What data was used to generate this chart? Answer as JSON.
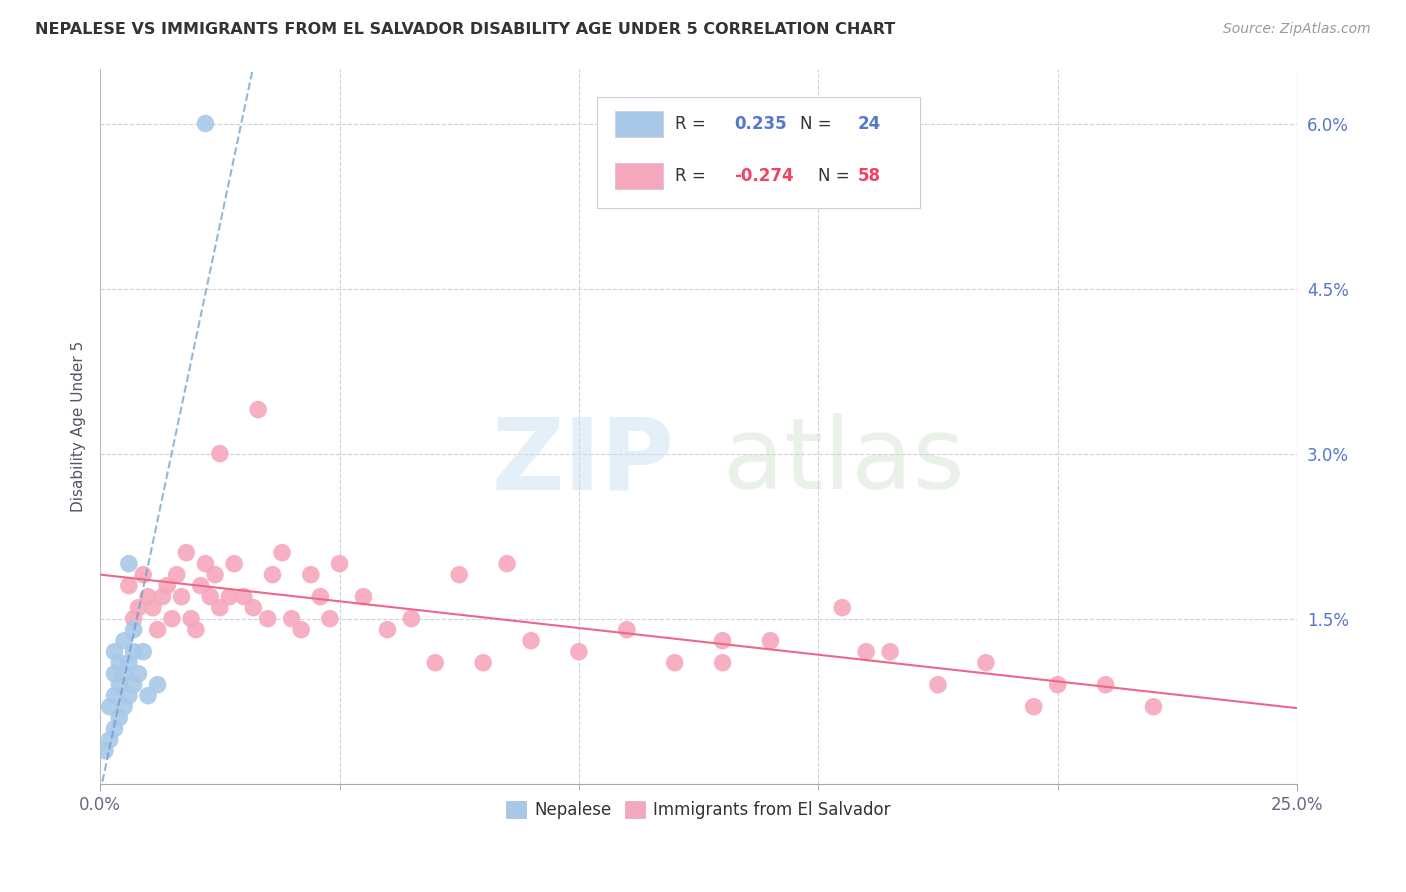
{
  "title": "NEPALESE VS IMMIGRANTS FROM EL SALVADOR DISABILITY AGE UNDER 5 CORRELATION CHART",
  "source": "Source: ZipAtlas.com",
  "ylabel": "Disability Age Under 5",
  "xlim": [
    0.0,
    0.25
  ],
  "ylim": [
    0.0,
    0.065
  ],
  "xticks": [
    0.0,
    0.25
  ],
  "xticklabels": [
    "0.0%",
    "25.0%"
  ],
  "xticks_minor": [
    0.05,
    0.1,
    0.15,
    0.2
  ],
  "yticks_right": [
    0.015,
    0.03,
    0.045,
    0.06
  ],
  "yticklabels_right": [
    "1.5%",
    "3.0%",
    "4.5%",
    "6.0%"
  ],
  "grid_color": "#d0d0e0",
  "background_color": "#ffffff",
  "nepalese_color": "#a8c8e8",
  "salvador_color": "#f5a8bc",
  "nepalese_trend_color": "#6699cc",
  "salvador_trend_color": "#ee6688",
  "legend_R1": "0.235",
  "legend_N1": "24",
  "legend_R2": "-0.274",
  "legend_N2": "58",
  "nepalese_x": [
    0.001,
    0.002,
    0.002,
    0.003,
    0.003,
    0.003,
    0.003,
    0.004,
    0.004,
    0.004,
    0.005,
    0.005,
    0.005,
    0.006,
    0.006,
    0.007,
    0.007,
    0.007,
    0.008,
    0.009,
    0.01,
    0.012,
    0.006,
    0.022
  ],
  "nepalese_y": [
    0.003,
    0.004,
    0.007,
    0.005,
    0.008,
    0.01,
    0.012,
    0.006,
    0.009,
    0.011,
    0.007,
    0.01,
    0.013,
    0.008,
    0.011,
    0.009,
    0.012,
    0.014,
    0.01,
    0.012,
    0.008,
    0.009,
    0.02,
    0.06
  ],
  "salvador_x": [
    0.006,
    0.007,
    0.008,
    0.009,
    0.01,
    0.011,
    0.012,
    0.013,
    0.014,
    0.015,
    0.016,
    0.017,
    0.018,
    0.019,
    0.02,
    0.021,
    0.022,
    0.023,
    0.024,
    0.025,
    0.027,
    0.028,
    0.03,
    0.032,
    0.033,
    0.035,
    0.036,
    0.038,
    0.04,
    0.042,
    0.044,
    0.046,
    0.05,
    0.055,
    0.06,
    0.065,
    0.07,
    0.075,
    0.08,
    0.085,
    0.09,
    0.1,
    0.11,
    0.12,
    0.13,
    0.14,
    0.155,
    0.165,
    0.175,
    0.185,
    0.195,
    0.21,
    0.025,
    0.048,
    0.13,
    0.16,
    0.2,
    0.22
  ],
  "salvador_y": [
    0.018,
    0.015,
    0.016,
    0.019,
    0.017,
    0.016,
    0.014,
    0.017,
    0.018,
    0.015,
    0.019,
    0.017,
    0.021,
    0.015,
    0.014,
    0.018,
    0.02,
    0.017,
    0.019,
    0.016,
    0.017,
    0.02,
    0.017,
    0.016,
    0.034,
    0.015,
    0.019,
    0.021,
    0.015,
    0.014,
    0.019,
    0.017,
    0.02,
    0.017,
    0.014,
    0.015,
    0.011,
    0.019,
    0.011,
    0.02,
    0.013,
    0.012,
    0.014,
    0.011,
    0.011,
    0.013,
    0.016,
    0.012,
    0.009,
    0.011,
    0.007,
    0.009,
    0.03,
    0.015,
    0.013,
    0.012,
    0.009,
    0.007
  ]
}
